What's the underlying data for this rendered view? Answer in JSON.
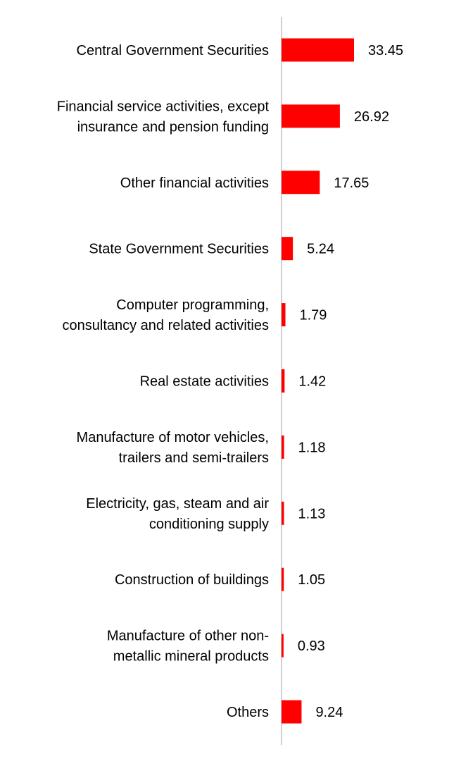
{
  "chart_data": {
    "type": "bar",
    "orientation": "horizontal",
    "title": "",
    "xlabel": "",
    "ylabel": "",
    "grid": false,
    "legend": "none",
    "bar_color": "#ff0000",
    "axis_color": "#d0d0d0",
    "categories": [
      [
        "Central Government Securities"
      ],
      [
        "Financial service activities, except",
        "insurance and pension funding"
      ],
      [
        "Other financial activities"
      ],
      [
        "State Government Securities"
      ],
      [
        "Computer programming,",
        "consultancy and related activities"
      ],
      [
        "Real estate activities"
      ],
      [
        "Manufacture of motor vehicles,",
        "trailers and semi-trailers"
      ],
      [
        "Electricity, gas, steam and air",
        "conditioning supply"
      ],
      [
        "Construction of buildings"
      ],
      [
        "Manufacture of other non-",
        "metallic mineral products"
      ],
      [
        "Others"
      ]
    ],
    "values": [
      33.45,
      26.92,
      17.65,
      5.24,
      1.79,
      1.42,
      1.18,
      1.13,
      1.05,
      0.93,
      9.24
    ],
    "value_labels": [
      "33.45",
      "26.92",
      "17.65",
      "5.24",
      "1.79",
      "1.42",
      "1.18",
      "1.13",
      "1.05",
      "0.93",
      "9.24"
    ]
  }
}
